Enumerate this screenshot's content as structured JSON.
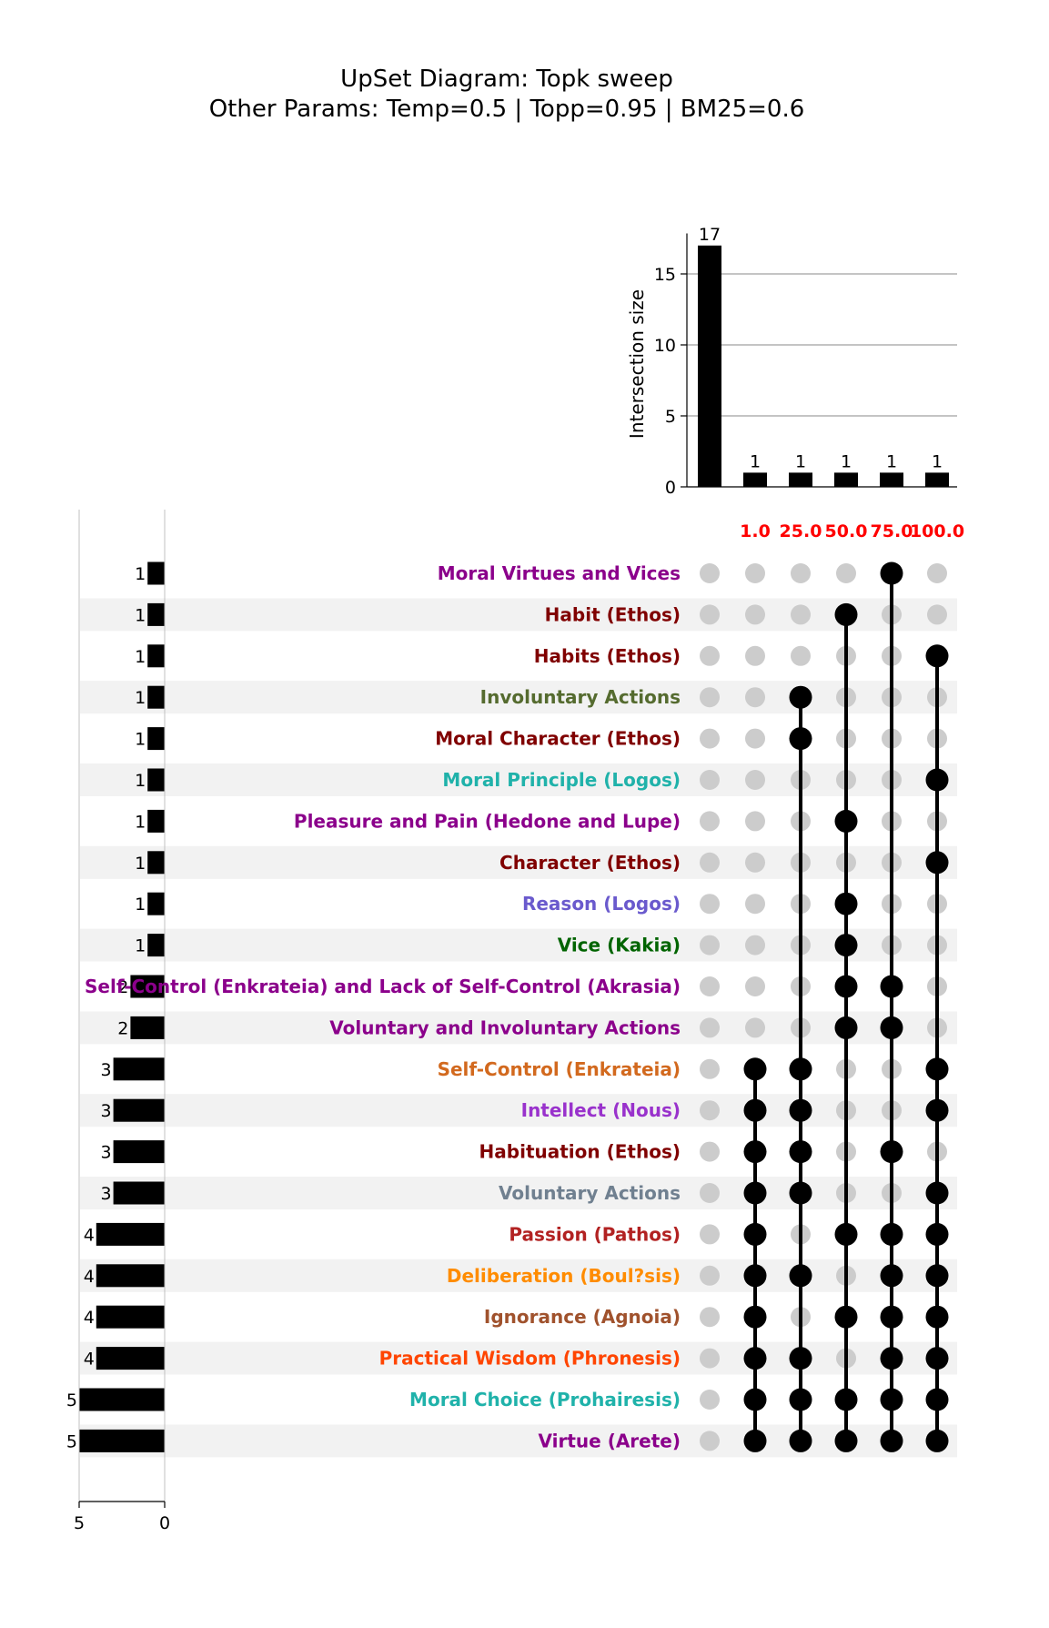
{
  "chart_data": {
    "type": "upset",
    "title": "UpSet Diagram: Topk sweep",
    "subtitle": "Other Params: Temp=0.5 | Topp=0.95 | BM25=0.6",
    "intersection_axis": {
      "label": "Intersection size",
      "ylim": [
        0,
        17.85
      ],
      "ticks": [
        0,
        5,
        10,
        15
      ],
      "grid": true
    },
    "set_size_axis": {
      "xlim": [
        5,
        0
      ],
      "ticks": [
        5,
        0
      ]
    },
    "columns": [
      {
        "label": "",
        "size": 17
      },
      {
        "label": "1.0",
        "size": 1
      },
      {
        "label": "25.0",
        "size": 1
      },
      {
        "label": "50.0",
        "size": 1
      },
      {
        "label": "75.0",
        "size": 1
      },
      {
        "label": "100.0",
        "size": 1
      }
    ],
    "sets": [
      {
        "name": "Moral Virtues and Vices",
        "size": 1,
        "color": "#8b008b",
        "members": [
          4
        ]
      },
      {
        "name": "Habit (Ethos)",
        "size": 1,
        "color": "#800000",
        "members": [
          3
        ]
      },
      {
        "name": "Habits (Ethos)",
        "size": 1,
        "color": "#800000",
        "members": [
          5
        ]
      },
      {
        "name": "Involuntary Actions",
        "size": 1,
        "color": "#556b2f",
        "members": [
          2
        ]
      },
      {
        "name": "Moral Character (Ethos)",
        "size": 1,
        "color": "#800000",
        "members": [
          2
        ]
      },
      {
        "name": "Moral Principle (Logos)",
        "size": 1,
        "color": "#20b2aa",
        "members": [
          5
        ]
      },
      {
        "name": "Pleasure and Pain (Hedone and Lupe)",
        "size": 1,
        "color": "#8b008b",
        "members": [
          3
        ]
      },
      {
        "name": "Character (Ethos)",
        "size": 1,
        "color": "#800000",
        "members": [
          5
        ]
      },
      {
        "name": "Reason (Logos)",
        "size": 1,
        "color": "#6a5acd",
        "members": [
          3
        ]
      },
      {
        "name": "Vice (Kakia)",
        "size": 1,
        "color": "#006400",
        "members": [
          3
        ]
      },
      {
        "name": "Self-Control (Enkrateia) and Lack of Self-Control (Akrasia)",
        "size": 2,
        "color": "#8b008b",
        "members": [
          3,
          4
        ]
      },
      {
        "name": "Voluntary and Involuntary Actions",
        "size": 2,
        "color": "#8b008b",
        "members": [
          3,
          4
        ]
      },
      {
        "name": "Self-Control (Enkrateia)",
        "size": 3,
        "color": "#d2691e",
        "members": [
          1,
          2,
          5
        ]
      },
      {
        "name": "Intellect (Nous)",
        "size": 3,
        "color": "#9932cc",
        "members": [
          1,
          2,
          5
        ]
      },
      {
        "name": "Habituation (Ethos)",
        "size": 3,
        "color": "#800000",
        "members": [
          1,
          2,
          4
        ]
      },
      {
        "name": "Voluntary Actions",
        "size": 3,
        "color": "#708090",
        "members": [
          1,
          2,
          5
        ]
      },
      {
        "name": "Passion (Pathos)",
        "size": 4,
        "color": "#b22222",
        "members": [
          1,
          3,
          4,
          5
        ]
      },
      {
        "name": "Deliberation (Boul?sis)",
        "size": 4,
        "color": "#ff8c00",
        "members": [
          1,
          2,
          4,
          5
        ]
      },
      {
        "name": "Ignorance (Agnoia)",
        "size": 4,
        "color": "#a0522d",
        "members": [
          1,
          3,
          4,
          5
        ]
      },
      {
        "name": "Practical Wisdom (Phronesis)",
        "size": 4,
        "color": "#ff4500",
        "members": [
          1,
          2,
          4,
          5
        ]
      },
      {
        "name": "Moral Choice (Prohairesis)",
        "size": 5,
        "color": "#20b2aa",
        "members": [
          1,
          2,
          3,
          4,
          5
        ]
      },
      {
        "name": "Virtue (Arete)",
        "size": 5,
        "color": "#8b008b",
        "members": [
          1,
          2,
          3,
          4,
          5
        ]
      }
    ],
    "colors": {
      "bar": "#000000",
      "dot_active": "#000000",
      "dot_inactive": "#cccccc",
      "stripe": "#f2f2f2",
      "grid": "#b0b0b0",
      "column_label": "#ff0000"
    }
  }
}
